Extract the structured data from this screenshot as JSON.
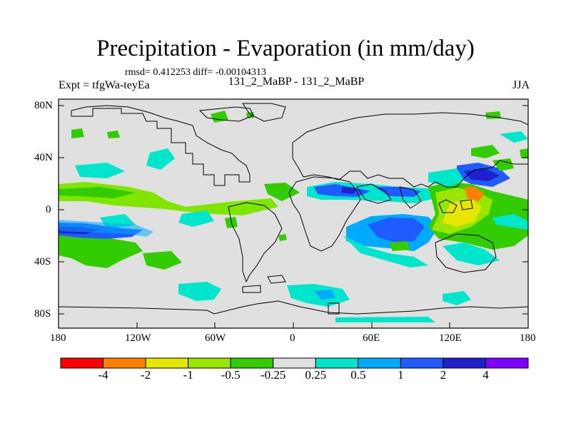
{
  "title": "Precipitation - Evaporation (in mm/day)",
  "stats": "rmsd= 0.412253 diff= -0.00104313",
  "experiment": "Expt = tfgWa-teyEa",
  "comparison": "131_2_MaBP - 131_2_MaBP",
  "season": "JJA",
  "lat_ticks": [
    "80N",
    "40N",
    "0",
    "40S",
    "80S"
  ],
  "lon_ticks": [
    "180",
    "120W",
    "60W",
    "0",
    "60E",
    "120E",
    "180"
  ],
  "colorbar": {
    "colors": [
      "#ff0000",
      "#ff8000",
      "#e6e600",
      "#99e600",
      "#33cc00",
      "#e0e0e0",
      "#00e6cc",
      "#00aaff",
      "#1f5bff",
      "#1f1fcc",
      "#8000ff"
    ],
    "labels": [
      "-4",
      "-2",
      "-1",
      "-0.5",
      "-0.25",
      "0.25",
      "0.5",
      "1",
      "2",
      "4"
    ]
  }
}
